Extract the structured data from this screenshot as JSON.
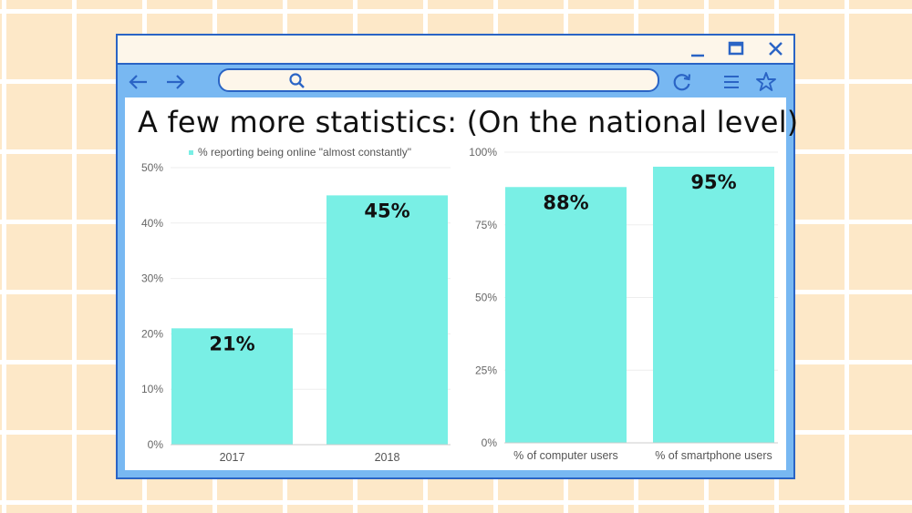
{
  "page": {
    "background_color": "#fde8c8",
    "grid_line_color": "#ffffff"
  },
  "window": {
    "frame_color": "#2a64c5",
    "toolbar_color": "#78b8f2",
    "titlebar_color": "#fdf6ea",
    "titlebar_icons": [
      "minimize-icon",
      "maximize-icon",
      "close-icon"
    ],
    "toolbar_icons": [
      "arrow-left-icon",
      "arrow-right-icon",
      "search-icon",
      "refresh-icon",
      "menu-icon",
      "star-icon"
    ]
  },
  "slide": {
    "title": "A few more statistics: (On the national level)"
  },
  "chart_data": [
    {
      "type": "bar",
      "categories": [
        "2017",
        "2018"
      ],
      "series": [
        {
          "name": "% reporting being online \"almost constantly\"",
          "values": [
            21,
            45
          ],
          "color": "#79efe5"
        }
      ],
      "data_labels": [
        "21%",
        "45%"
      ],
      "legend": "top-center",
      "ylim": [
        0,
        50
      ],
      "yticks": [
        "0%",
        "10%",
        "20%",
        "30%",
        "40%",
        "50%"
      ],
      "grid": true
    },
    {
      "type": "bar",
      "categories": [
        "% of computer users",
        "% of smartphone users"
      ],
      "series": [
        {
          "values": [
            88,
            95
          ],
          "color": "#79efe5"
        }
      ],
      "data_labels": [
        "88%",
        "95%"
      ],
      "ylim": [
        0,
        100
      ],
      "yticks": [
        "0%",
        "25%",
        "50%",
        "75%",
        "100%"
      ],
      "grid": true
    }
  ]
}
